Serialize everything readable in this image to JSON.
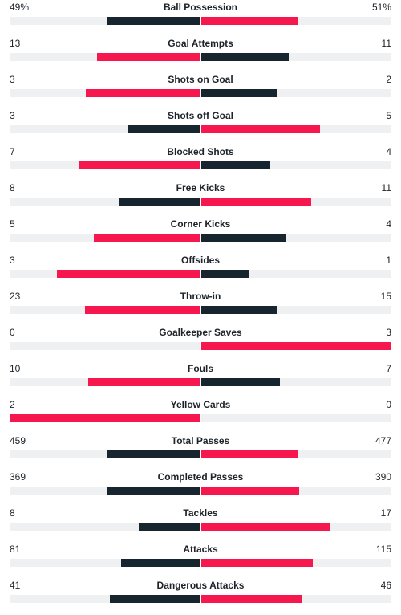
{
  "colors": {
    "leader": "#f5174e",
    "trailer": "#17262e",
    "track": "#eef0f2"
  },
  "stats": [
    {
      "label": "Ball Possession",
      "home": "49%",
      "away": "51%",
      "home_value": 49,
      "away_value": 51
    },
    {
      "label": "Goal Attempts",
      "home": "13",
      "away": "11",
      "home_value": 13,
      "away_value": 11
    },
    {
      "label": "Shots on Goal",
      "home": "3",
      "away": "2",
      "home_value": 3,
      "away_value": 2
    },
    {
      "label": "Shots off Goal",
      "home": "3",
      "away": "5",
      "home_value": 3,
      "away_value": 5
    },
    {
      "label": "Blocked Shots",
      "home": "7",
      "away": "4",
      "home_value": 7,
      "away_value": 4
    },
    {
      "label": "Free Kicks",
      "home": "8",
      "away": "11",
      "home_value": 8,
      "away_value": 11
    },
    {
      "label": "Corner Kicks",
      "home": "5",
      "away": "4",
      "home_value": 5,
      "away_value": 4
    },
    {
      "label": "Offsides",
      "home": "3",
      "away": "1",
      "home_value": 3,
      "away_value": 1
    },
    {
      "label": "Throw-in",
      "home": "23",
      "away": "15",
      "home_value": 23,
      "away_value": 15
    },
    {
      "label": "Goalkeeper Saves",
      "home": "0",
      "away": "3",
      "home_value": 0,
      "away_value": 3
    },
    {
      "label": "Fouls",
      "home": "10",
      "away": "7",
      "home_value": 10,
      "away_value": 7
    },
    {
      "label": "Yellow Cards",
      "home": "2",
      "away": "0",
      "home_value": 2,
      "away_value": 0
    },
    {
      "label": "Total Passes",
      "home": "459",
      "away": "477",
      "home_value": 459,
      "away_value": 477
    },
    {
      "label": "Completed Passes",
      "home": "369",
      "away": "390",
      "home_value": 369,
      "away_value": 390
    },
    {
      "label": "Tackles",
      "home": "8",
      "away": "17",
      "home_value": 8,
      "away_value": 17
    },
    {
      "label": "Attacks",
      "home": "81",
      "away": "115",
      "home_value": 81,
      "away_value": 115
    },
    {
      "label": "Dangerous Attacks",
      "home": "41",
      "away": "46",
      "home_value": 41,
      "away_value": 46
    }
  ]
}
